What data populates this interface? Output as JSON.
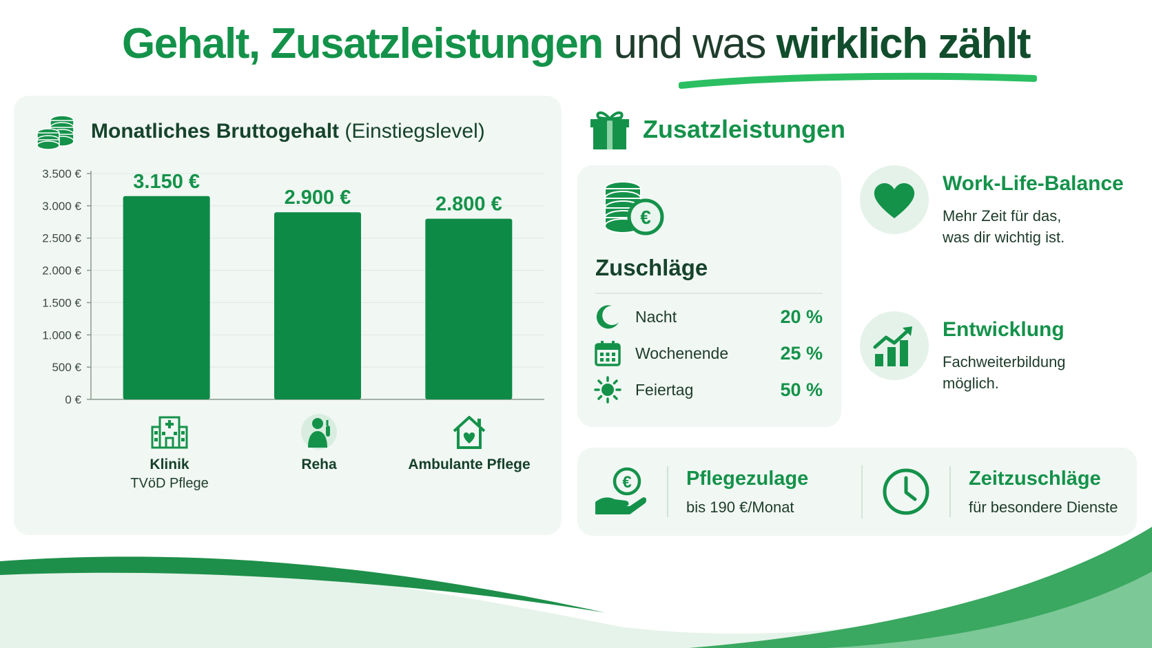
{
  "title": {
    "part1": "Gehalt, Zusatzleistungen",
    "part2": "und was",
    "part3": "wirklich zählt"
  },
  "chart_header": {
    "strong": "Monatliches Bruttogehalt",
    "rest": "(Einstiegslevel)",
    "icon": "coins-stack-icon"
  },
  "chart_data": {
    "type": "bar",
    "categories": [
      "Klinik",
      "Reha",
      "Ambulante Pflege"
    ],
    "category_sublabels": [
      "TVöD Pflege",
      "",
      ""
    ],
    "values": [
      3150,
      2900,
      2800
    ],
    "data_labels": [
      "3.150 €",
      "2.900 €",
      "2.800 €"
    ],
    "ylim": [
      0,
      3500
    ],
    "yticks": [
      0,
      500,
      1000,
      1500,
      2000,
      2500,
      3000,
      3500
    ],
    "ytick_labels": [
      "0 €",
      "500 €",
      "1.000 €",
      "1.500 €",
      "2.000 €",
      "2.500 €",
      "3.000 €",
      "3.500 €"
    ],
    "grid": true,
    "color": "#0e8a47",
    "category_icons": [
      "hospital-icon",
      "nurse-icon",
      "home-heart-icon"
    ]
  },
  "zusatzleistungen": {
    "title": "Zusatzleistungen",
    "icon": "gift-icon",
    "zuschlaege": {
      "title": "Zuschläge",
      "icon": "coins-euro-icon",
      "rows": [
        {
          "label": "Nacht",
          "value": "20 %",
          "icon": "moon-icon"
        },
        {
          "label": "Wochenende",
          "value": "25 %",
          "icon": "calendar-icon"
        },
        {
          "label": "Feiertag",
          "value": "50 %",
          "icon": "sun-icon"
        }
      ]
    },
    "features": [
      {
        "title": "Work-Life-Balance",
        "desc": "Mehr Zeit für das,\nwas dir wichtig ist.",
        "icon": "heart-icon"
      },
      {
        "title": "Entwicklung",
        "desc": "Fachweiterbildung\nmöglich.",
        "icon": "growth-chart-icon"
      }
    ],
    "bottom": [
      {
        "title": "Pflegezulage",
        "desc": "bis 190 €/Monat",
        "icon": "hand-euro-icon"
      },
      {
        "title": "Zeitzuschläge",
        "desc": "für besondere Dienste",
        "icon": "clock-icon"
      }
    ]
  },
  "colors": {
    "brand_green": "#14924a",
    "bar_green": "#0e8a47",
    "dark_text": "#16432b",
    "card_bg": "#f1f7f3"
  }
}
